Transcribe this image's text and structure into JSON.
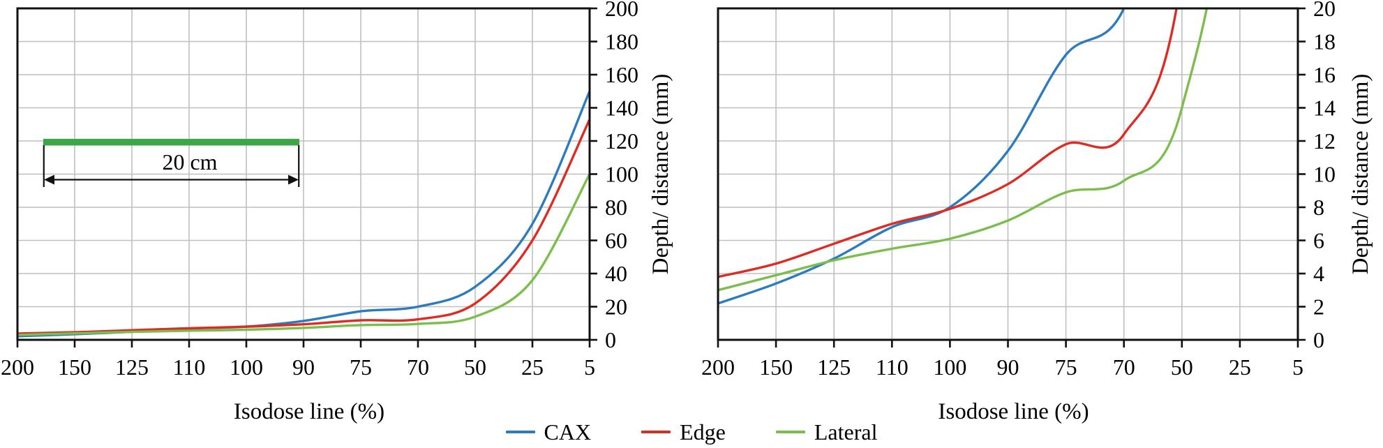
{
  "figure": {
    "legend": {
      "items": [
        {
          "label": "CAX",
          "color": "#2B7BBE"
        },
        {
          "label": "Edge",
          "color": "#DD2C24"
        },
        {
          "label": "Lateral",
          "color": "#7CBE4D"
        }
      ]
    }
  },
  "chart_data": [
    {
      "type": "line",
      "panel": "left",
      "title": "",
      "xlabel": "Isodose line (%)",
      "ylabel": "Depth/ distance (mm)",
      "categories": [
        200,
        150,
        125,
        110,
        100,
        90,
        75,
        70,
        50,
        25,
        5
      ],
      "series": [
        {
          "name": "CAX",
          "color": "#2B7BBE",
          "values": [
            2.2,
            3.4,
            4.9,
            6.8,
            8.0,
            11.4,
            17.2,
            20,
            32,
            70,
            150
          ]
        },
        {
          "name": "Edge",
          "color": "#DD2C24",
          "values": [
            3.8,
            4.6,
            5.8,
            7.0,
            7.9,
            9.4,
            11.8,
            12.4,
            22,
            60,
            133
          ]
        },
        {
          "name": "Lateral",
          "color": "#7CBE4D",
          "values": [
            3.0,
            3.9,
            4.8,
            5.5,
            6.1,
            7.2,
            8.9,
            9.6,
            14,
            36,
            100
          ]
        }
      ],
      "ylim": [
        0,
        200
      ],
      "ytick_step": 20,
      "grid": true,
      "y_axis_side": "right",
      "legend_position": "bottom",
      "annotation": {
        "label": "20 cm",
        "bar_color": "#3CA845"
      }
    },
    {
      "type": "line",
      "panel": "right",
      "title": "",
      "xlabel": "Isodose line (%)",
      "ylabel": "Depth/ distance (mm)",
      "categories": [
        200,
        150,
        125,
        110,
        100,
        90,
        75,
        70,
        50,
        25,
        5
      ],
      "series": [
        {
          "name": "CAX",
          "color": "#2B7BBE",
          "values": [
            2.2,
            3.4,
            4.9,
            6.8,
            8.0,
            11.4,
            17.2,
            20,
            32,
            70,
            150
          ]
        },
        {
          "name": "Edge",
          "color": "#DD2C24",
          "values": [
            3.8,
            4.6,
            5.8,
            7.0,
            7.9,
            9.4,
            11.8,
            12.4,
            22,
            60,
            133
          ]
        },
        {
          "name": "Lateral",
          "color": "#7CBE4D",
          "values": [
            3.0,
            3.9,
            4.8,
            5.5,
            6.1,
            7.2,
            8.9,
            9.6,
            14,
            36,
            100
          ]
        }
      ],
      "ylim": [
        0,
        20
      ],
      "ytick_step": 2,
      "grid": true,
      "y_axis_side": "right",
      "legend_position": "bottom"
    }
  ]
}
